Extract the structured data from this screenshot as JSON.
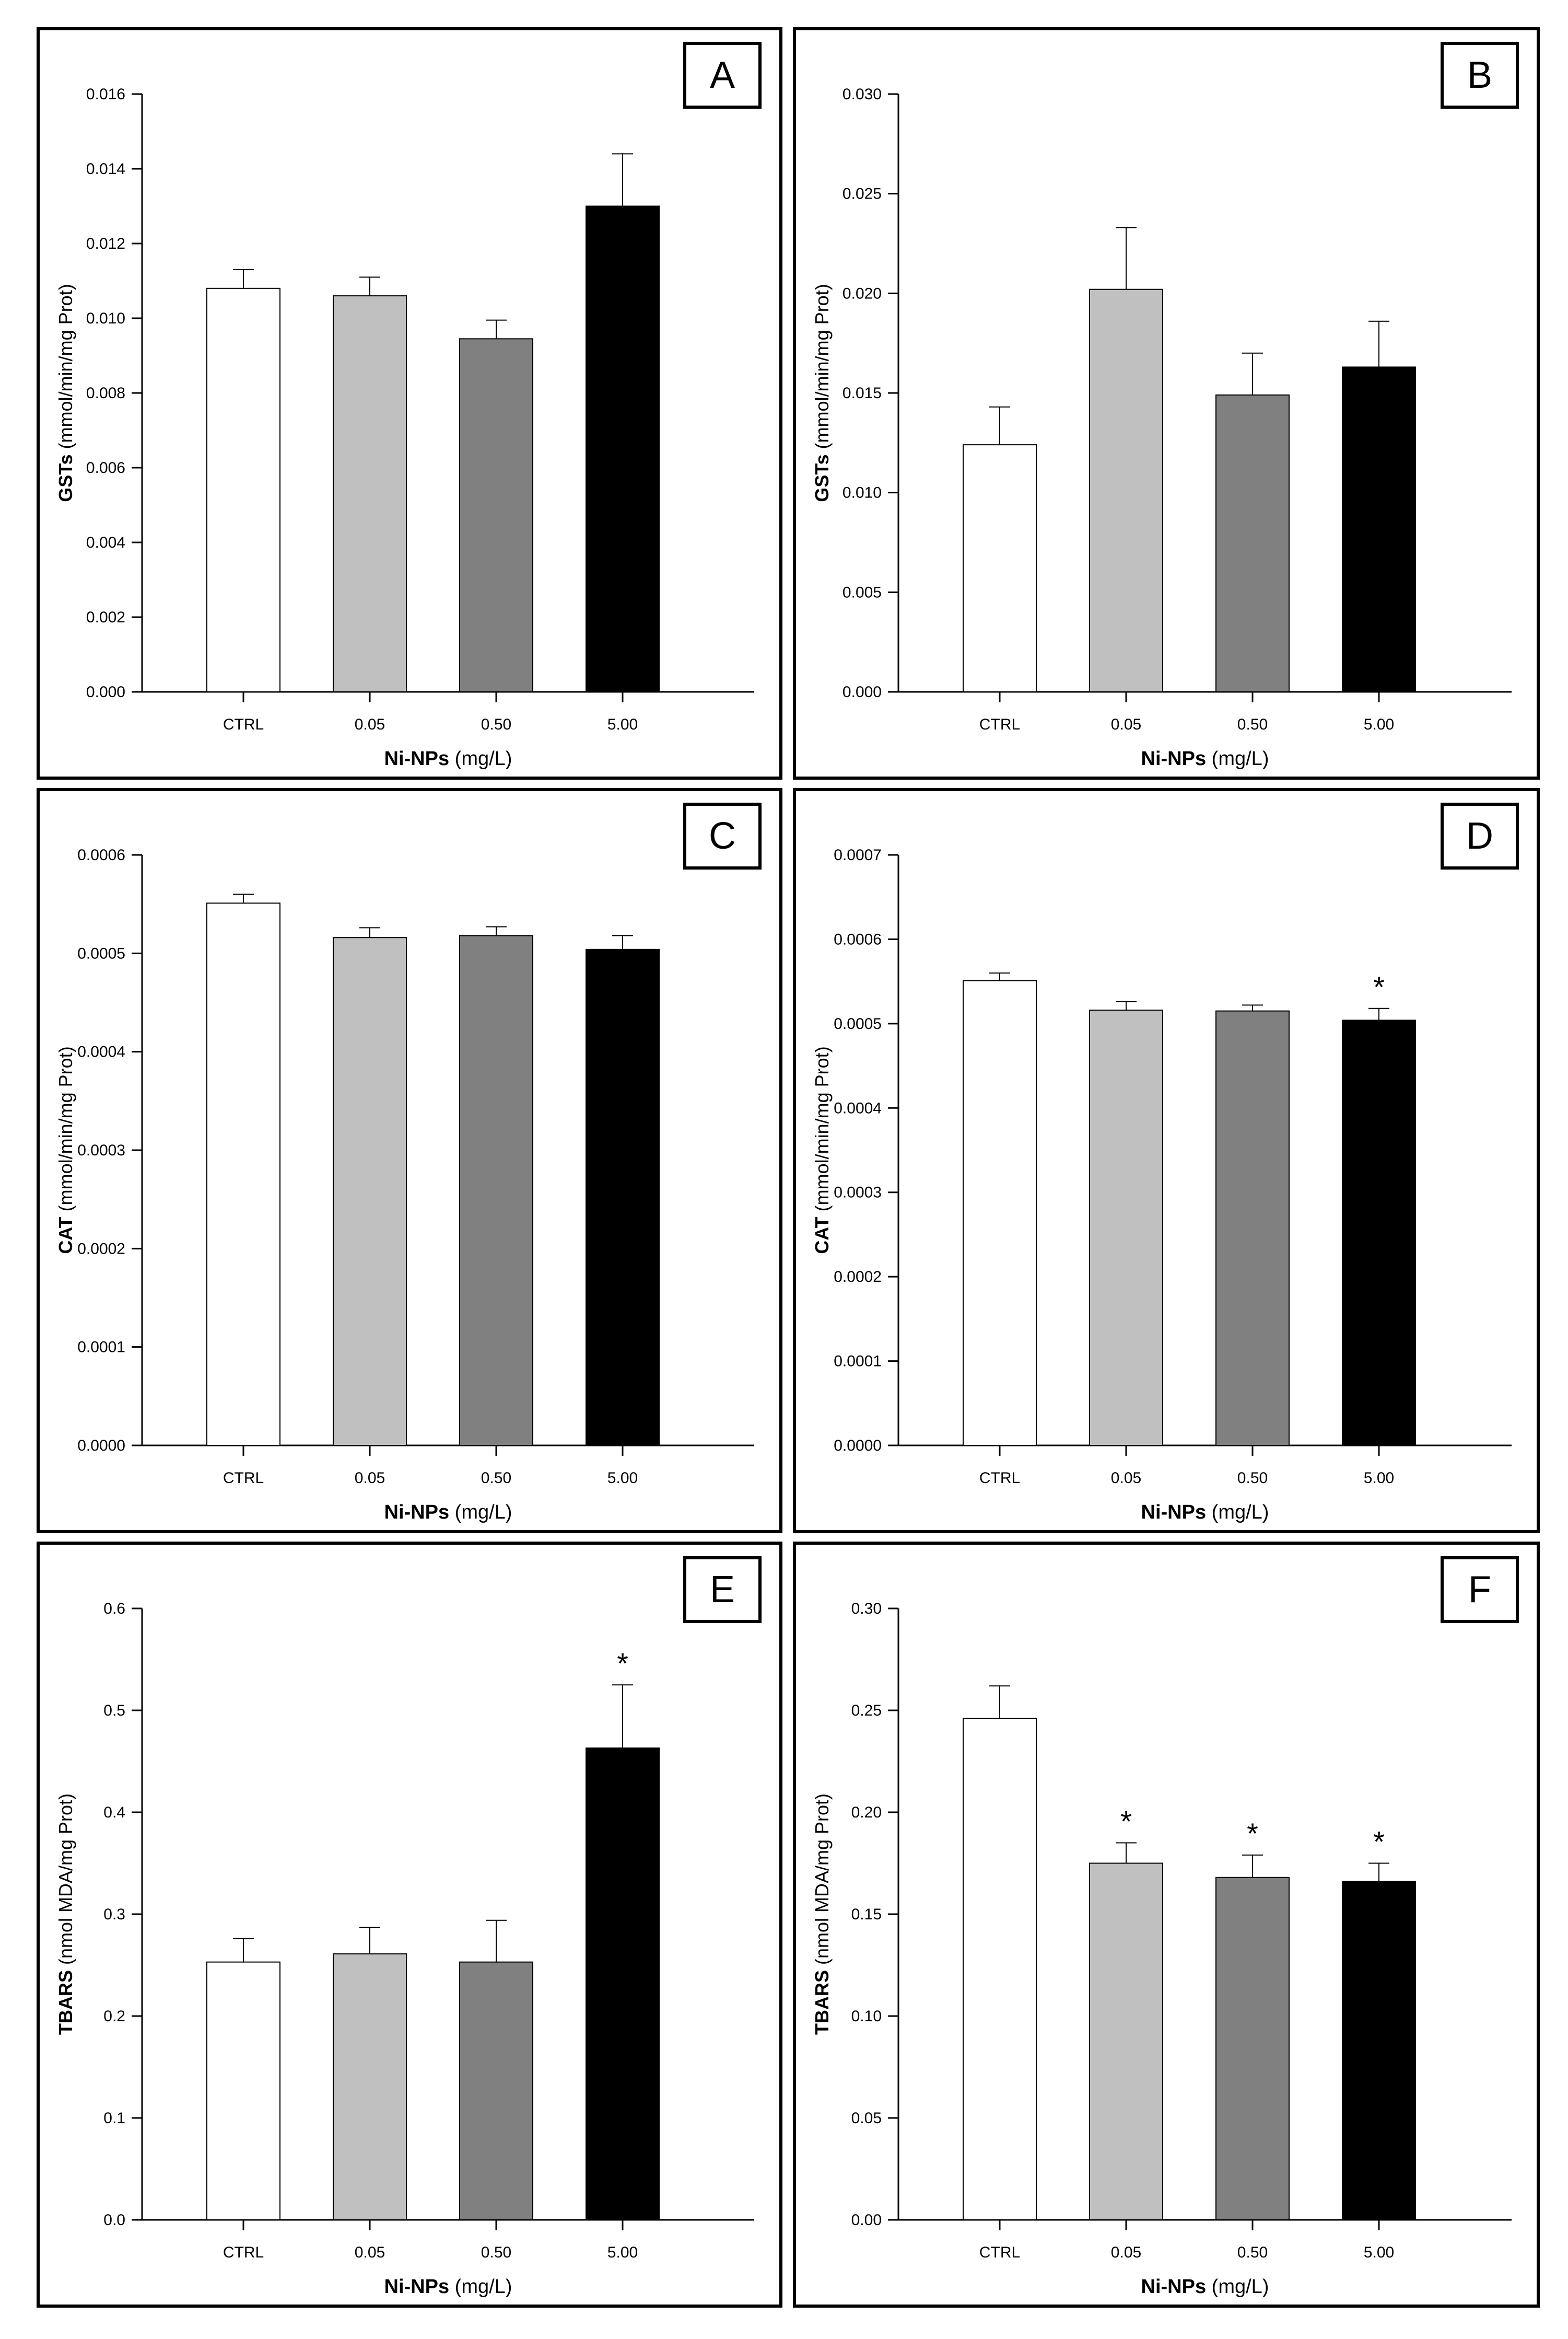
{
  "chart_data": [
    {
      "type": "bar",
      "panel_label": "A",
      "categories": [
        "CTRL",
        "0.05",
        "0.50",
        "5.00"
      ],
      "values": [
        0.0108,
        0.0106,
        0.00945,
        0.013
      ],
      "errors": [
        0.0005,
        0.0005,
        0.0005,
        0.0014
      ],
      "significant": [
        false,
        false,
        false,
        false
      ],
      "ylim": [
        0,
        0.016
      ],
      "yticks": [
        "0.000",
        "0.002",
        "0.004",
        "0.006",
        "0.008",
        "0.010",
        "0.012",
        "0.014",
        "0.016"
      ],
      "ylabel_bold": "GSTs",
      "ylabel_rest": " (mmol/min/mg Prot)",
      "xlabel_bold": "Ni-NPs",
      "xlabel_rest": " (mg/L)",
      "colors": [
        "#ffffff",
        "#c0c0c0",
        "#808080",
        "#000000"
      ]
    },
    {
      "type": "bar",
      "panel_label": "B",
      "categories": [
        "CTRL",
        "0.05",
        "0.50",
        "5.00"
      ],
      "values": [
        0.0124,
        0.0202,
        0.0149,
        0.0163
      ],
      "errors": [
        0.0019,
        0.0031,
        0.0021,
        0.0023
      ],
      "significant": [
        false,
        false,
        false,
        false
      ],
      "ylim": [
        0,
        0.03
      ],
      "yticks": [
        "0.000",
        "0.005",
        "0.010",
        "0.015",
        "0.020",
        "0.025",
        "0.030"
      ],
      "ylabel_bold": "GSTs",
      "ylabel_rest": " (mmol/min/mg Prot)",
      "xlabel_bold": "Ni-NPs",
      "xlabel_rest": " (mg/L)",
      "colors": [
        "#ffffff",
        "#c0c0c0",
        "#808080",
        "#000000"
      ]
    },
    {
      "type": "bar",
      "panel_label": "C",
      "categories": [
        "CTRL",
        "0.05",
        "0.50",
        "5.00"
      ],
      "values": [
        0.000551,
        0.000516,
        0.000518,
        0.000504
      ],
      "errors": [
        9e-06,
        1e-05,
        9e-06,
        1.4e-05
      ],
      "significant": [
        false,
        false,
        false,
        false
      ],
      "ylim": [
        0,
        0.0006
      ],
      "yticks": [
        "0.0000",
        "0.0001",
        "0.0002",
        "0.0003",
        "0.0004",
        "0.0005",
        "0.0006"
      ],
      "ylabel_bold": "CAT",
      "ylabel_rest": " (mmol/min/mg Prot)",
      "xlabel_bold": "Ni-NPs",
      "xlabel_rest": " (mg/L)",
      "colors": [
        "#ffffff",
        "#c0c0c0",
        "#808080",
        "#000000"
      ]
    },
    {
      "type": "bar",
      "panel_label": "D",
      "categories": [
        "CTRL",
        "0.05",
        "0.50",
        "5.00"
      ],
      "values": [
        0.000551,
        0.000516,
        0.000515,
        0.000504
      ],
      "errors": [
        9e-06,
        1e-05,
        7e-06,
        1.4e-05
      ],
      "significant": [
        false,
        false,
        false,
        true
      ],
      "ylim": [
        0,
        0.0007
      ],
      "yticks": [
        "0.0000",
        "0.0001",
        "0.0002",
        "0.0003",
        "0.0004",
        "0.0005",
        "0.0006",
        "0.0007"
      ],
      "ylabel_bold": "CAT",
      "ylabel_rest": " (mmol/min/mg Prot)",
      "xlabel_bold": "Ni-NPs",
      "xlabel_rest": " (mg/L)",
      "colors": [
        "#ffffff",
        "#c0c0c0",
        "#808080",
        "#000000"
      ]
    },
    {
      "type": "bar",
      "panel_label": "E",
      "categories": [
        "CTRL",
        "0.05",
        "0.50",
        "5.00"
      ],
      "values": [
        0.253,
        0.261,
        0.253,
        0.463
      ],
      "errors": [
        0.023,
        0.026,
        0.041,
        0.062
      ],
      "significant": [
        false,
        false,
        false,
        true
      ],
      "ylim": [
        0,
        0.6
      ],
      "yticks": [
        "0.0",
        "0.1",
        "0.2",
        "0.3",
        "0.4",
        "0.5",
        "0.6"
      ],
      "ylabel_bold": "TBARS",
      "ylabel_rest": " (nmol MDA/mg Prot)",
      "xlabel_bold": "Ni-NPs",
      "xlabel_rest": " (mg/L)",
      "colors": [
        "#ffffff",
        "#c0c0c0",
        "#808080",
        "#000000"
      ]
    },
    {
      "type": "bar",
      "panel_label": "F",
      "categories": [
        "CTRL",
        "0.05",
        "0.50",
        "5.00"
      ],
      "values": [
        0.246,
        0.175,
        0.168,
        0.166
      ],
      "errors": [
        0.016,
        0.01,
        0.011,
        0.009
      ],
      "significant": [
        false,
        true,
        true,
        true
      ],
      "ylim": [
        0,
        0.3
      ],
      "yticks": [
        "0.00",
        "0.05",
        "0.10",
        "0.15",
        "0.20",
        "0.25",
        "0.30"
      ],
      "ylabel_bold": "TBARS",
      "ylabel_rest": " (nmol MDA/mg Prot)",
      "xlabel_bold": "Ni-NPs",
      "xlabel_rest": " (mg/L)",
      "colors": [
        "#ffffff",
        "#c0c0c0",
        "#808080",
        "#000000"
      ]
    }
  ],
  "significance_marker": "*"
}
